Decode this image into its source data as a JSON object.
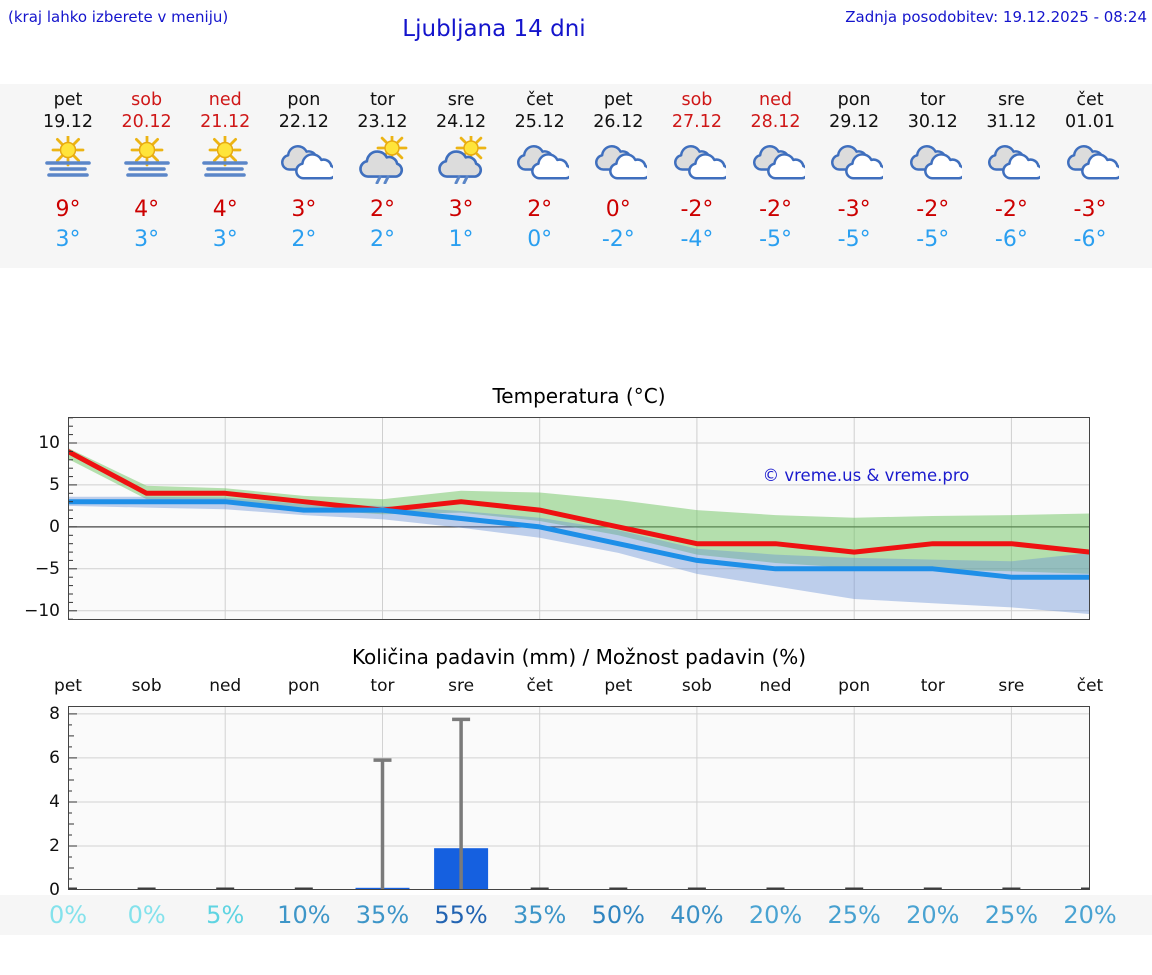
{
  "header": {
    "hint": "(kraj lahko izberete v meniju)",
    "title": "Ljubljana 14 dni",
    "last_update": "Zadnja posodobitev: 19.12.2025 - 08:24"
  },
  "colors": {
    "accent_blue": "#1414cc",
    "weekend_red": "#cf1717",
    "weekday_black": "#111111",
    "temp_max_red": "#cc0000",
    "temp_min_blue": "#2a9ff0",
    "line_max": "#ee1111",
    "line_min": "#1e8fe8",
    "band_max_green": "rgba(110,195,95,0.50)",
    "band_min_blue": "rgba(105,145,215,0.42)",
    "bar_blue": "#1560e0",
    "whisker_gray": "#7a7a7a",
    "strip_bg": "#f6f6f6",
    "plot_bg": "#fafafa"
  },
  "days": [
    {
      "name": "pet",
      "date": "19.12",
      "weekend": false,
      "icon": "sun-fog",
      "tmax": "9°",
      "tmin": "3°",
      "pop": "0%",
      "pop_color": "#84e2ec"
    },
    {
      "name": "sob",
      "date": "20.12",
      "weekend": true,
      "icon": "sun-fog",
      "tmax": "4°",
      "tmin": "3°",
      "pop": "0%",
      "pop_color": "#84e2ec"
    },
    {
      "name": "ned",
      "date": "21.12",
      "weekend": true,
      "icon": "sun-fog",
      "tmax": "4°",
      "tmin": "3°",
      "pop": "5%",
      "pop_color": "#5fd4e2"
    },
    {
      "name": "pon",
      "date": "22.12",
      "weekend": false,
      "icon": "cloudy",
      "tmax": "3°",
      "tmin": "2°",
      "pop": "10%",
      "pop_color": "#3e96c8"
    },
    {
      "name": "tor",
      "date": "23.12",
      "weekend": false,
      "icon": "sun-showers",
      "tmax": "2°",
      "tmin": "2°",
      "pop": "35%",
      "pop_color": "#3d95c8"
    },
    {
      "name": "sre",
      "date": "24.12",
      "weekend": false,
      "icon": "sun-showers",
      "tmax": "3°",
      "tmin": "1°",
      "pop": "55%",
      "pop_color": "#2264b2"
    },
    {
      "name": "čet",
      "date": "25.12",
      "weekend": false,
      "icon": "cloudy",
      "tmax": "2°",
      "tmin": "0°",
      "pop": "35%",
      "pop_color": "#3d95c8"
    },
    {
      "name": "pet",
      "date": "26.12",
      "weekend": false,
      "icon": "cloudy",
      "tmax": "0°",
      "tmin": "-2°",
      "pop": "50%",
      "pop_color": "#2e84c0"
    },
    {
      "name": "sob",
      "date": "27.12",
      "weekend": true,
      "icon": "cloudy",
      "tmax": "-2°",
      "tmin": "-4°",
      "pop": "40%",
      "pop_color": "#3a90c5"
    },
    {
      "name": "ned",
      "date": "28.12",
      "weekend": true,
      "icon": "cloudy",
      "tmax": "-2°",
      "tmin": "-5°",
      "pop": "20%",
      "pop_color": "#4aa3d2"
    },
    {
      "name": "pon",
      "date": "29.12",
      "weekend": false,
      "icon": "cloudy",
      "tmax": "-3°",
      "tmin": "-5°",
      "pop": "25%",
      "pop_color": "#46a0d0"
    },
    {
      "name": "tor",
      "date": "30.12",
      "weekend": false,
      "icon": "cloudy",
      "tmax": "-2°",
      "tmin": "-5°",
      "pop": "20%",
      "pop_color": "#4aa3d2"
    },
    {
      "name": "sre",
      "date": "31.12",
      "weekend": false,
      "icon": "cloudy",
      "tmax": "-2°",
      "tmin": "-6°",
      "pop": "25%",
      "pop_color": "#46a0d0"
    },
    {
      "name": "čet",
      "date": "01.01",
      "weekend": false,
      "icon": "cloudy",
      "tmax": "-3°",
      "tmin": "-6°",
      "pop": "20%",
      "pop_color": "#4aa3d2"
    }
  ],
  "chart_data": [
    {
      "type": "line",
      "title": "Temperatura (°C)",
      "x_labels": [
        "19.12",
        "20.12",
        "21.12",
        "22.12",
        "23.12",
        "24.12",
        "25.12",
        "26.12",
        "27.12",
        "28.12",
        "29.12",
        "30.12",
        "31.12",
        "01.01"
      ],
      "ylim": [
        -11.1,
        13.1
      ],
      "yticks": [
        {
          "v": 10,
          "label": "10"
        },
        {
          "v": 5,
          "label": "5"
        },
        {
          "v": 0,
          "label": "0"
        },
        {
          "v": -5,
          "label": "−5"
        },
        {
          "v": -10,
          "label": "−10"
        }
      ],
      "grid": "on",
      "series": [
        {
          "name": "max temperature",
          "color": "#ee1111",
          "values": [
            9,
            4,
            4,
            3,
            2,
            3,
            2,
            0,
            -2,
            -2,
            -3,
            -2,
            -2,
            -3
          ]
        },
        {
          "name": "min temperature",
          "color": "#1e8fe8",
          "values": [
            3,
            3,
            3,
            2,
            2,
            1,
            0,
            -2,
            -4,
            -5,
            -5,
            -5,
            -6,
            -6
          ]
        }
      ],
      "bands": [
        {
          "name": "max uncertainty",
          "color": "rgba(110,195,95,0.50)",
          "upper": [
            9.4,
            4.9,
            4.6,
            3.7,
            3.3,
            4.3,
            4.1,
            3.2,
            2.0,
            1.4,
            1.1,
            1.3,
            1.4,
            1.6
          ],
          "lower": [
            8.1,
            3.3,
            2.9,
            2.1,
            1.5,
            1.7,
            0.7,
            -1.0,
            -3.3,
            -4.3,
            -4.9,
            -5.1,
            -5.3,
            -5.6
          ]
        },
        {
          "name": "min uncertainty",
          "color": "rgba(105,145,215,0.42)",
          "upper": [
            3.6,
            3.6,
            3.5,
            2.7,
            2.5,
            1.9,
            1.1,
            -0.4,
            -2.6,
            -3.3,
            -3.7,
            -3.9,
            -4.1,
            -3.1
          ],
          "lower": [
            2.5,
            2.3,
            2.1,
            1.4,
            0.9,
            -0.1,
            -1.3,
            -3.1,
            -5.6,
            -7.1,
            -8.6,
            -9.1,
            -9.6,
            -10.4
          ]
        }
      ],
      "annotation": {
        "text": "© vreme.us & vreme.pro",
        "color": "#1a1acd"
      }
    },
    {
      "type": "bar",
      "title": "Količina padavin (mm) / Možnost padavin (%)",
      "categories": [
        "pet",
        "sob",
        "ned",
        "pon",
        "tor",
        "sre",
        "čet",
        "pet",
        "sob",
        "ned",
        "pon",
        "tor",
        "sre",
        "čet"
      ],
      "precip_mm": [
        0,
        0,
        0,
        0,
        0.1,
        1.9,
        0,
        0,
        0,
        0,
        0,
        0,
        0,
        0
      ],
      "precip_max_mm": [
        0,
        0,
        0,
        0,
        5.9,
        7.75,
        0,
        0,
        0,
        0,
        0,
        0,
        0,
        0
      ],
      "probability_pct": [
        0,
        0,
        5,
        10,
        35,
        55,
        35,
        50,
        40,
        20,
        25,
        20,
        25,
        20
      ],
      "ylim": [
        0,
        8.36
      ],
      "yticks": [
        {
          "v": 8,
          "label": "8"
        },
        {
          "v": 6,
          "label": "6"
        },
        {
          "v": 4,
          "label": "4"
        },
        {
          "v": 2,
          "label": "2"
        },
        {
          "v": 0,
          "label": "0"
        }
      ],
      "grid": "on",
      "bar_color": "#1560e0",
      "whisker_color": "#7a7a7a"
    }
  ]
}
